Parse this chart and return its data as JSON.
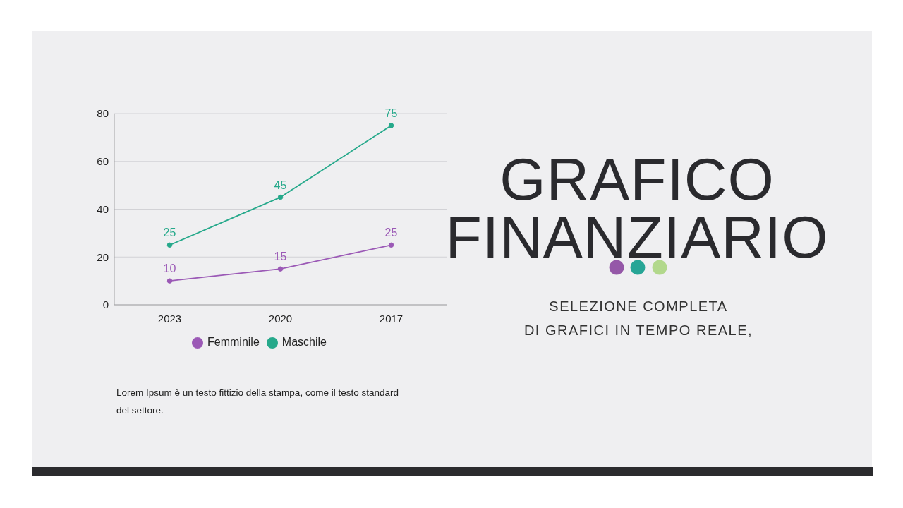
{
  "chart_data": {
    "type": "line",
    "title": "GRAFICO FINANZIARIO",
    "subtitle": "SELEZIONE COMPLETA\nDI GRAFICI IN TEMPO REALE,",
    "categories": [
      "2023",
      "2020",
      "2017"
    ],
    "series": [
      {
        "name": "Femminile",
        "color": "#9b59b6",
        "values": [
          10,
          15,
          25
        ]
      },
      {
        "name": "Maschile",
        "color": "#26a98b",
        "values": [
          25,
          45,
          75
        ]
      }
    ],
    "ylim": [
      0,
      80
    ],
    "yticks": [
      0,
      20,
      40,
      60,
      80
    ],
    "grid": "y",
    "legend": "bottom",
    "marker": "circle",
    "line_style": "solid",
    "data_labels": true,
    "annotations": [
      "Lorem Ipsum è un testo fittizio della stampa, come il testo standard del settore."
    ]
  }
}
